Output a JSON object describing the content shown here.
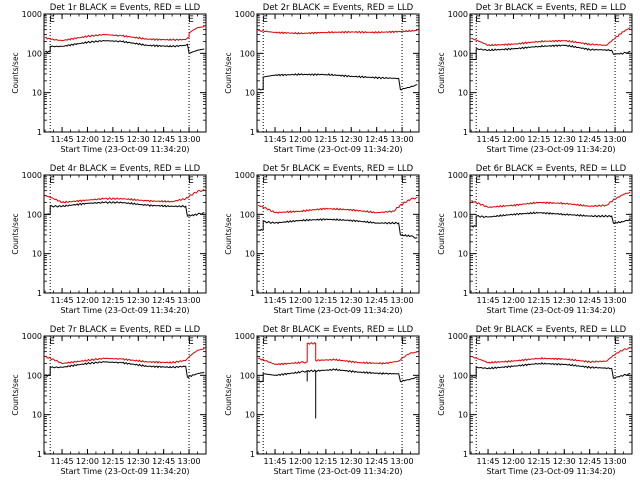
{
  "colors": {
    "events": "#000000",
    "lld": "#e00000",
    "axis": "#000000",
    "background": "#ffffff"
  },
  "shared": {
    "ylabel": "Counts/sec",
    "xlabel": "Start Time (23-Oct-09 11:34:20)",
    "xticks": [
      "11:45",
      "12:00",
      "12:15",
      "12:30",
      "12:45",
      "13:00"
    ],
    "yticks": [
      "1",
      "10",
      "100",
      "1000"
    ],
    "marker": "E",
    "dotted_lines_at": [
      "11:38",
      "13:00"
    ]
  },
  "chart_data": [
    {
      "type": "line",
      "title": "Det 1r BLACK = Events, RED = LLD",
      "xlim": [
        "11:34:20",
        "13:10"
      ],
      "ylim": [
        1,
        1000
      ],
      "yscale": "log",
      "series": [
        {
          "color": "red",
          "x": [
            "11:35",
            "11:38",
            "11:38",
            "11:45",
            "12:00",
            "12:10",
            "12:20",
            "12:35",
            "12:50",
            "12:58",
            "13:00",
            "13:00",
            "13:05",
            "13:09"
          ],
          "y": [
            250,
            230,
            230,
            210,
            270,
            300,
            280,
            230,
            220,
            225,
            260,
            330,
            450,
            480
          ]
        },
        {
          "color": "black",
          "x": [
            "11:35",
            "11:38",
            "11:38",
            "11:45",
            "12:00",
            "12:10",
            "12:20",
            "12:35",
            "12:50",
            "12:58",
            "12:59",
            "13:00",
            "13:05",
            "13:09"
          ],
          "y": [
            110,
            110,
            150,
            150,
            190,
            210,
            200,
            160,
            150,
            160,
            170,
            100,
            120,
            130
          ]
        }
      ]
    },
    {
      "type": "line",
      "title": "Det 2r BLACK = Events, RED = LLD",
      "xlim": [
        "11:34:20",
        "13:10"
      ],
      "ylim": [
        1,
        1000
      ],
      "yscale": "log",
      "series": [
        {
          "color": "red",
          "x": [
            "11:35",
            "11:45",
            "12:00",
            "12:15",
            "12:30",
            "12:45",
            "13:00",
            "13:09"
          ],
          "y": [
            380,
            340,
            320,
            340,
            350,
            340,
            360,
            380
          ]
        },
        {
          "color": "black",
          "x": [
            "11:35",
            "11:38",
            "11:38",
            "11:45",
            "12:00",
            "12:15",
            "12:30",
            "12:45",
            "12:58",
            "12:59",
            "13:05",
            "13:09"
          ],
          "y": [
            12,
            12,
            25,
            28,
            29,
            29,
            26,
            24,
            23,
            12,
            14,
            16
          ]
        }
      ]
    },
    {
      "type": "line",
      "title": "Det 3r BLACK = Events, RED = LLD",
      "xlim": [
        "11:34:20",
        "13:10"
      ],
      "ylim": [
        1,
        1000
      ],
      "yscale": "log",
      "series": [
        {
          "color": "red",
          "x": [
            "11:35",
            "11:45",
            "12:00",
            "12:15",
            "12:30",
            "12:45",
            "12:55",
            "13:00",
            "13:09"
          ],
          "y": [
            240,
            160,
            170,
            200,
            210,
            170,
            160,
            240,
            450
          ]
        },
        {
          "color": "black",
          "x": [
            "11:35",
            "11:38",
            "11:38",
            "11:45",
            "12:00",
            "12:15",
            "12:30",
            "12:45",
            "12:58",
            "12:59",
            "13:05",
            "13:09"
          ],
          "y": [
            70,
            70,
            130,
            120,
            130,
            150,
            160,
            125,
            120,
            95,
            100,
            110
          ]
        }
      ]
    },
    {
      "type": "line",
      "title": "Det 4r BLACK = Events, RED = LLD",
      "xlim": [
        "11:34:20",
        "13:10"
      ],
      "ylim": [
        1,
        1000
      ],
      "yscale": "log",
      "series": [
        {
          "color": "red",
          "x": [
            "11:35",
            "11:45",
            "12:00",
            "12:10",
            "12:20",
            "12:35",
            "12:50",
            "12:58",
            "13:05",
            "13:09"
          ],
          "y": [
            300,
            200,
            230,
            250,
            250,
            220,
            210,
            250,
            380,
            420
          ]
        },
        {
          "color": "black",
          "x": [
            "11:35",
            "11:38",
            "11:38",
            "11:45",
            "12:00",
            "12:10",
            "12:20",
            "12:35",
            "12:50",
            "12:58",
            "12:59",
            "13:05",
            "13:09"
          ],
          "y": [
            100,
            100,
            160,
            160,
            190,
            200,
            200,
            170,
            160,
            160,
            90,
            100,
            110
          ]
        }
      ]
    },
    {
      "type": "line",
      "title": "Det 5r BLACK = Events, RED = LLD",
      "xlim": [
        "11:34:20",
        "13:10"
      ],
      "ylim": [
        1,
        1000
      ],
      "yscale": "log",
      "series": [
        {
          "color": "red",
          "x": [
            "11:35",
            "11:45",
            "12:00",
            "12:15",
            "12:30",
            "12:45",
            "12:55",
            "13:05",
            "13:09"
          ],
          "y": [
            170,
            110,
            120,
            140,
            130,
            110,
            120,
            240,
            270
          ]
        },
        {
          "color": "black",
          "x": [
            "11:35",
            "11:38",
            "11:38",
            "11:45",
            "12:00",
            "12:15",
            "12:30",
            "12:45",
            "12:58",
            "12:59",
            "13:05",
            "13:09"
          ],
          "y": [
            40,
            40,
            65,
            60,
            70,
            75,
            70,
            60,
            60,
            30,
            28,
            25
          ]
        }
      ]
    },
    {
      "type": "line",
      "title": "Det 6r BLACK = Events, RED = LLD",
      "xlim": [
        "11:34:20",
        "13:10"
      ],
      "ylim": [
        1,
        1000
      ],
      "yscale": "log",
      "series": [
        {
          "color": "red",
          "x": [
            "11:35",
            "11:45",
            "12:00",
            "12:15",
            "12:30",
            "12:45",
            "12:55",
            "13:05",
            "13:09"
          ],
          "y": [
            220,
            150,
            170,
            200,
            190,
            160,
            170,
            320,
            370
          ]
        },
        {
          "color": "black",
          "x": [
            "11:35",
            "11:38",
            "11:38",
            "11:45",
            "12:00",
            "12:15",
            "12:30",
            "12:45",
            "12:58",
            "12:59",
            "13:05",
            "13:09"
          ],
          "y": [
            50,
            50,
            90,
            85,
            100,
            110,
            100,
            90,
            90,
            60,
            65,
            75
          ]
        }
      ]
    },
    {
      "type": "line",
      "title": "Det 7r BLACK = Events, RED = LLD",
      "xlim": [
        "11:34:20",
        "13:10"
      ],
      "ylim": [
        1,
        1000
      ],
      "yscale": "log",
      "series": [
        {
          "color": "red",
          "x": [
            "11:35",
            "11:45",
            "12:00",
            "12:10",
            "12:20",
            "12:35",
            "12:50",
            "12:58",
            "13:05",
            "13:09"
          ],
          "y": [
            300,
            200,
            240,
            270,
            260,
            220,
            210,
            240,
            430,
            480
          ]
        },
        {
          "color": "black",
          "x": [
            "11:35",
            "11:38",
            "11:38",
            "11:45",
            "12:00",
            "12:10",
            "12:20",
            "12:35",
            "12:50",
            "12:58",
            "12:59",
            "13:05",
            "13:09"
          ],
          "y": [
            100,
            100,
            160,
            160,
            200,
            220,
            210,
            170,
            160,
            170,
            90,
            110,
            120
          ]
        }
      ]
    },
    {
      "type": "line",
      "title": "Det 8r BLACK = Events, RED = LLD",
      "xlim": [
        "11:34:20",
        "13:10"
      ],
      "ylim": [
        1,
        1000
      ],
      "yscale": "log",
      "series": [
        {
          "color": "red",
          "x": [
            "11:35",
            "11:45",
            "12:00",
            "12:04",
            "12:04",
            "12:09",
            "12:09",
            "12:20",
            "12:35",
            "12:50",
            "12:58",
            "13:05",
            "13:09"
          ],
          "y": [
            270,
            190,
            210,
            220,
            650,
            650,
            240,
            250,
            210,
            200,
            230,
            370,
            390
          ]
        },
        {
          "color": "black",
          "x": [
            "11:35",
            "11:38",
            "11:38",
            "11:45",
            "12:00",
            "12:04",
            "12:04",
            "12:04",
            "12:09",
            "12:09",
            "12:09",
            "12:09",
            "12:20",
            "12:35",
            "12:50",
            "12:58",
            "12:59",
            "13:05",
            "13:09"
          ],
          "y": [
            70,
            70,
            110,
            100,
            120,
            130,
            70,
            130,
            130,
            8,
            8,
            130,
            140,
            120,
            110,
            110,
            70,
            80,
            90
          ]
        }
      ]
    },
    {
      "type": "line",
      "title": "Det 9r BLACK = Events, RED = LLD",
      "xlim": [
        "11:34:20",
        "13:10"
      ],
      "ylim": [
        1,
        1000
      ],
      "yscale": "log",
      "series": [
        {
          "color": "red",
          "x": [
            "11:35",
            "11:45",
            "12:00",
            "12:15",
            "12:30",
            "12:45",
            "12:55",
            "13:05",
            "13:09"
          ],
          "y": [
            300,
            210,
            230,
            270,
            260,
            220,
            230,
            450,
            500
          ]
        },
        {
          "color": "black",
          "x": [
            "11:35",
            "11:38",
            "11:38",
            "11:45",
            "12:00",
            "12:15",
            "12:30",
            "12:45",
            "12:58",
            "12:59",
            "13:05",
            "13:09"
          ],
          "y": [
            90,
            90,
            160,
            150,
            170,
            200,
            190,
            160,
            150,
            85,
            100,
            110
          ]
        }
      ]
    }
  ]
}
